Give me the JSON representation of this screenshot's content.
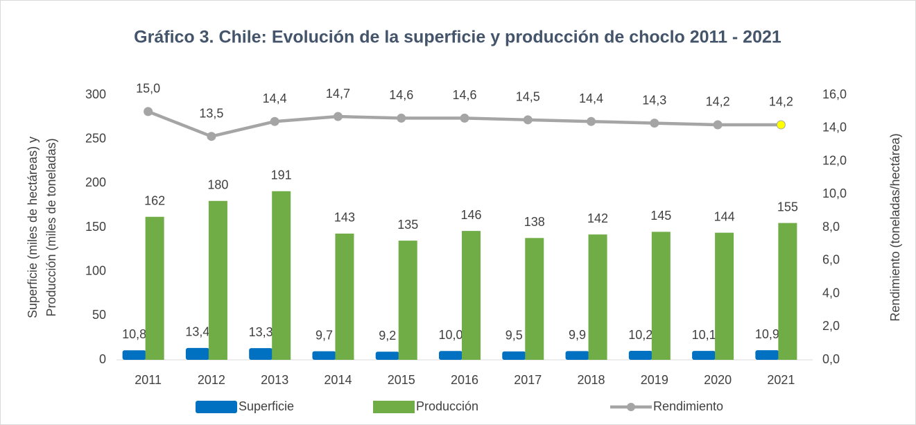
{
  "chart_data": {
    "type": "bar",
    "title": "Gráfico 3. Chile: Evolución de la superficie y producción de choclo 2011 - 2021",
    "y_label_lines": [
      "Superficie (miles de hectáreas) y",
      "Producción (miles de toneladas)"
    ],
    "y2_label": "Rendimiento (toneladas/hectárea)",
    "categories": [
      "2011",
      "2012",
      "2013",
      "2014",
      "2015",
      "2016",
      "2017",
      "2018",
      "2019",
      "2020",
      "2021"
    ],
    "series": [
      {
        "name": "Superficie",
        "type": "bar",
        "color": "#0070c0",
        "values": [
          10.8,
          13.4,
          13.3,
          9.7,
          9.2,
          10.0,
          9.5,
          9.9,
          10.2,
          10.1,
          10.9
        ],
        "value_labels": [
          "10,8",
          "13,4",
          "13,3",
          "9,7",
          "9,2",
          "10,0",
          "9,5",
          "9,9",
          "10,2",
          "10,1",
          "10,9"
        ]
      },
      {
        "name": "Producción",
        "type": "bar",
        "color": "#70ad47",
        "values": [
          162,
          180,
          191,
          143,
          135,
          146,
          138,
          142,
          145,
          144,
          155
        ]
      },
      {
        "name": "Rendimiento",
        "type": "line",
        "axis": "y2",
        "color": "#a5a5a5",
        "point_colors": [
          "#a5a5a5",
          "#a5a5a5",
          "#a5a5a5",
          "#a5a5a5",
          "#a5a5a5",
          "#a5a5a5",
          "#a5a5a5",
          "#a5a5a5",
          "#a5a5a5",
          "#a5a5a5",
          "#ffff00"
        ],
        "values": [
          15.0,
          13.5,
          14.4,
          14.7,
          14.6,
          14.6,
          14.5,
          14.4,
          14.3,
          14.2,
          14.2
        ],
        "value_labels": [
          "15,0",
          "13,5",
          "14,4",
          "14,7",
          "14,6",
          "14,6",
          "14,5",
          "14,4",
          "14,3",
          "14,2",
          "14,2"
        ]
      }
    ],
    "ylim": [
      0,
      300
    ],
    "yticks": [
      0,
      50,
      100,
      150,
      200,
      250,
      300
    ],
    "y2lim": [
      0,
      16
    ],
    "y2ticks": [
      {
        "value": 0,
        "label": "0,0"
      },
      {
        "value": 2,
        "label": "2,0"
      },
      {
        "value": 4,
        "label": "4,0"
      },
      {
        "value": 6,
        "label": "6,0"
      },
      {
        "value": 8,
        "label": "8,0"
      },
      {
        "value": 10,
        "label": "10,0"
      },
      {
        "value": 12,
        "label": "12,0"
      },
      {
        "value": 14,
        "label": "14,0"
      },
      {
        "value": 16,
        "label": "16,0"
      }
    ],
    "grid": false,
    "legend": "bottom"
  }
}
